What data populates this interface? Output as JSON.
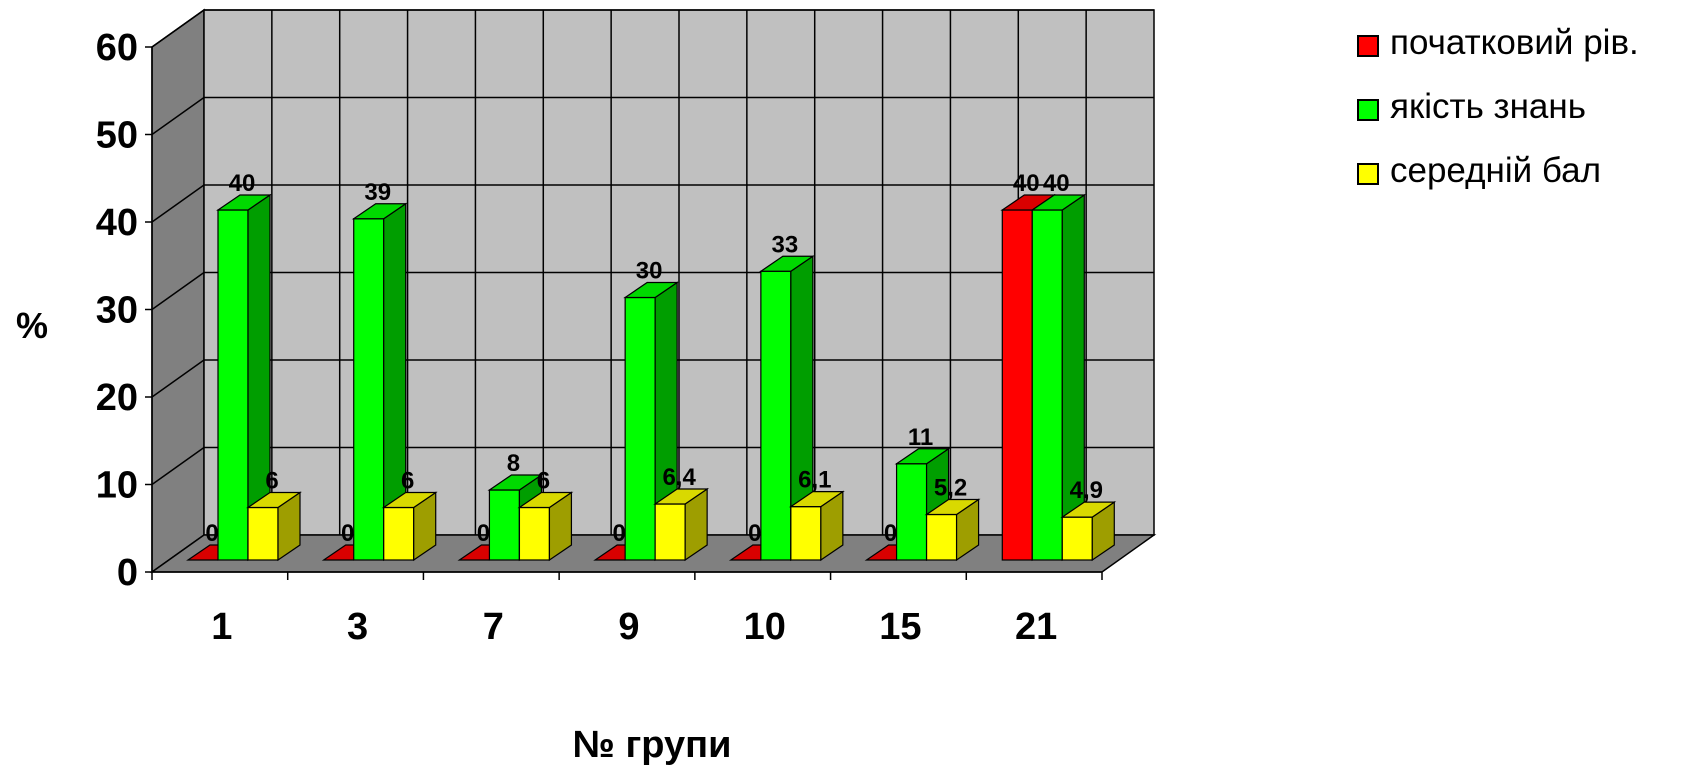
{
  "chart_data": {
    "type": "bar",
    "subtype": "3d-clustered-column",
    "categories": [
      "1",
      "3",
      "7",
      "9",
      "10",
      "15",
      "21"
    ],
    "series": [
      {
        "name": "початковий рів.",
        "color": "#ff0000",
        "values": [
          0,
          0,
          0,
          0,
          0,
          0,
          40
        ],
        "labels": [
          "0",
          "0",
          "0",
          "0",
          "0",
          "0",
          "40"
        ]
      },
      {
        "name": "якість знань",
        "color": "#00ff00",
        "values": [
          40,
          39,
          8,
          30,
          33,
          11,
          40
        ],
        "labels": [
          "40",
          "39",
          "8",
          "30",
          "33",
          "11",
          "40"
        ]
      },
      {
        "name": "середній бал",
        "color": "#ffff00",
        "values": [
          6,
          6,
          6,
          6.4,
          6.1,
          5.2,
          4.9
        ],
        "labels": [
          "6",
          "6",
          "6",
          "6,4",
          "6,1",
          "5,2",
          "4,9"
        ]
      }
    ],
    "title": "",
    "xlabel": "№ групи",
    "ylabel": "%",
    "ylim": [
      0,
      60
    ],
    "yticks": [
      "0",
      "10",
      "20",
      "30",
      "40",
      "50",
      "60"
    ],
    "grid": true,
    "legend_position": "top-right",
    "wall_color": "#c0c0c0",
    "floor_color": "#808080"
  }
}
